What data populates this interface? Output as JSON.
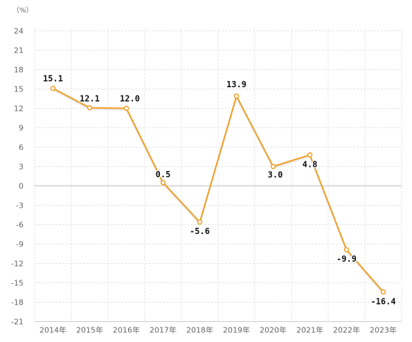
{
  "chart_data": {
    "type": "line",
    "unit_label": "（%）",
    "categories": [
      "2014年",
      "2015年",
      "2016年",
      "2017年",
      "2018年",
      "2019年",
      "2020年",
      "2021年",
      "2022年",
      "2023年"
    ],
    "series": [
      {
        "values": [
          15.1,
          12.1,
          12.0,
          0.5,
          -5.6,
          13.9,
          3.0,
          4.8,
          -9.9,
          -16.4
        ],
        "labels": [
          "15.1",
          "12.1",
          "12.0",
          "0.5",
          "-5.6",
          "13.9",
          "3.0",
          "4.8",
          "-9.9",
          "-16.4"
        ],
        "color": "#f39c1f"
      }
    ],
    "yticks": [
      24,
      21,
      18,
      15,
      12,
      9,
      6,
      3,
      0,
      -3,
      -6,
      -9,
      -12,
      -15,
      -18,
      -21
    ],
    "ylim": [
      -21,
      24
    ],
    "grid": true,
    "legend": "none",
    "colors": {
      "line": "#f39c1f",
      "grid": "#e3e3e3",
      "zero_line": "#c8c8c8",
      "axis": "#cccccc",
      "text": "#666666",
      "label": "#111111"
    }
  }
}
